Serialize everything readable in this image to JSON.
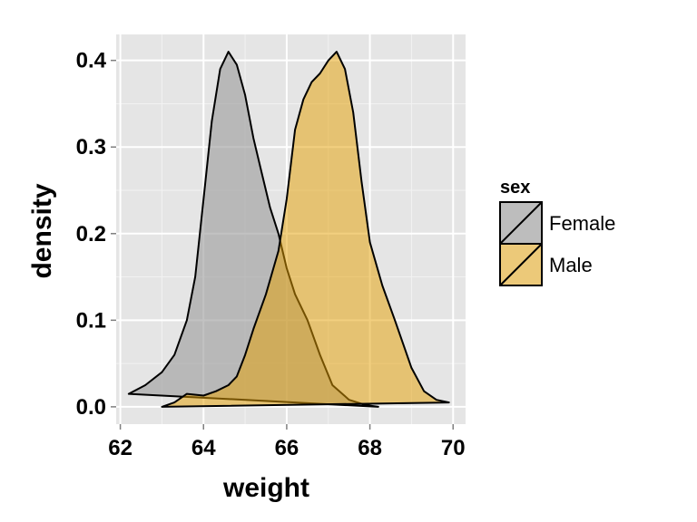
{
  "chart_data": {
    "type": "area",
    "subtype": "density",
    "xlabel": "weight",
    "ylabel": "density",
    "xlim": [
      61.9,
      70.3
    ],
    "ylim": [
      -0.02,
      0.43
    ],
    "x_ticks": [
      62,
      64,
      66,
      68,
      70
    ],
    "x_tick_labels": [
      "62",
      "64",
      "66",
      "68",
      "70"
    ],
    "y_ticks": [
      0.0,
      0.1,
      0.2,
      0.3,
      0.4
    ],
    "y_tick_labels": [
      "0.0",
      "0.1",
      "0.2",
      "0.3",
      "0.4"
    ],
    "grid": true,
    "legend": {
      "title": "sex",
      "position": "right"
    },
    "series": [
      {
        "name": "Female",
        "color": "#999999",
        "opacity": 0.6,
        "x": [
          62.2,
          62.6,
          63.0,
          63.3,
          63.6,
          63.8,
          64.0,
          64.2,
          64.4,
          64.6,
          64.8,
          65.0,
          65.2,
          65.4,
          65.6,
          65.8,
          66.0,
          66.2,
          66.5,
          66.8,
          67.1,
          67.5,
          67.9,
          68.2
        ],
        "y": [
          0.015,
          0.025,
          0.04,
          0.06,
          0.1,
          0.15,
          0.24,
          0.33,
          0.39,
          0.41,
          0.395,
          0.36,
          0.31,
          0.27,
          0.23,
          0.2,
          0.16,
          0.13,
          0.1,
          0.06,
          0.025,
          0.008,
          0.002,
          0.0
        ]
      },
      {
        "name": "Male",
        "color": "#E69F00",
        "opacity": 0.5,
        "x": [
          63.0,
          63.3,
          63.6,
          64.0,
          64.3,
          64.6,
          64.8,
          65.0,
          65.2,
          65.5,
          65.8,
          66.0,
          66.2,
          66.4,
          66.6,
          66.8,
          67.0,
          67.2,
          67.4,
          67.6,
          67.8,
          68.0,
          68.3,
          68.6,
          69.0,
          69.3,
          69.6,
          69.9
        ],
        "y": [
          0.0,
          0.005,
          0.015,
          0.013,
          0.018,
          0.025,
          0.035,
          0.06,
          0.09,
          0.13,
          0.18,
          0.24,
          0.32,
          0.355,
          0.375,
          0.385,
          0.4,
          0.41,
          0.39,
          0.34,
          0.26,
          0.19,
          0.14,
          0.1,
          0.045,
          0.018,
          0.008,
          0.005
        ]
      }
    ]
  }
}
